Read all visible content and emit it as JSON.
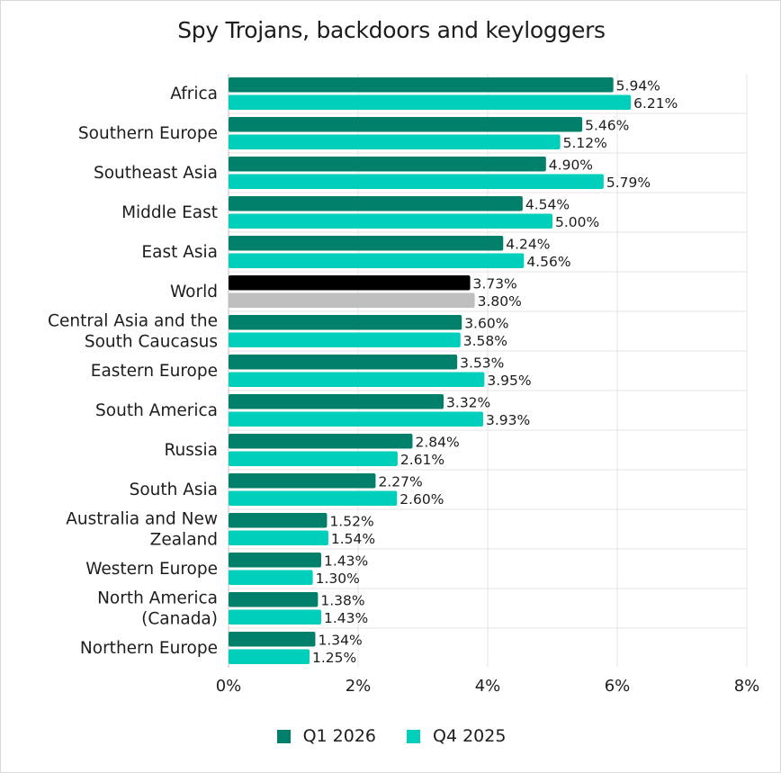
{
  "chart_data": {
    "type": "bar",
    "orientation": "horizontal",
    "title": "Spy Trojans, backdoors and keyloggers",
    "xlabel": "",
    "ylabel": "",
    "xlim": [
      0,
      8
    ],
    "x_ticks": [
      "0%",
      "2%",
      "4%",
      "6%",
      "8%"
    ],
    "grid": true,
    "legend_position": "bottom",
    "categories": [
      "Africa",
      "Southern Europe",
      "Southeast Asia",
      "Middle East",
      "East Asia",
      "World",
      "Central Asia and the South Caucasus",
      "Eastern Europe",
      "South America",
      "Russia",
      "South Asia",
      "Australia and New Zealand",
      "Western Europe",
      "North America (Canada)",
      "Northern Europe"
    ],
    "category_lines": [
      [
        "Africa"
      ],
      [
        "Southern Europe"
      ],
      [
        "Southeast Asia"
      ],
      [
        "Middle East"
      ],
      [
        "East Asia"
      ],
      [
        "World"
      ],
      [
        "Central Asia and the",
        "South Caucasus"
      ],
      [
        "Eastern Europe"
      ],
      [
        "South America"
      ],
      [
        "Russia"
      ],
      [
        "South Asia"
      ],
      [
        "Australia and New",
        "Zealand"
      ],
      [
        "Western Europe"
      ],
      [
        "North America",
        "(Canada)"
      ],
      [
        "Northern Europe"
      ]
    ],
    "highlight_category": "World",
    "highlight_colors": [
      "#000000",
      "#bfbfbf"
    ],
    "series": [
      {
        "name": "Q1 2026",
        "color": "#00806a",
        "values": [
          5.94,
          5.46,
          4.9,
          4.54,
          4.24,
          3.73,
          3.6,
          3.53,
          3.32,
          2.84,
          2.27,
          1.52,
          1.43,
          1.38,
          1.34
        ],
        "labels": [
          "5.94%",
          "5.46%",
          "4.90%",
          "4.54%",
          "4.24%",
          "3.73%",
          "3.60%",
          "3.53%",
          "3.32%",
          "2.84%",
          "2.27%",
          "1.52%",
          "1.43%",
          "1.38%",
          "1.34%"
        ]
      },
      {
        "name": "Q4 2025",
        "color": "#00cfbb",
        "values": [
          6.21,
          5.12,
          5.79,
          5.0,
          4.56,
          3.8,
          3.58,
          3.95,
          3.93,
          2.61,
          2.6,
          1.54,
          1.3,
          1.43,
          1.25
        ],
        "labels": [
          "6.21%",
          "5.12%",
          "5.79%",
          "5.00%",
          "4.56%",
          "3.80%",
          "3.58%",
          "3.95%",
          "3.93%",
          "2.61%",
          "2.60%",
          "1.54%",
          "1.30%",
          "1.43%",
          "1.25%"
        ]
      }
    ]
  }
}
